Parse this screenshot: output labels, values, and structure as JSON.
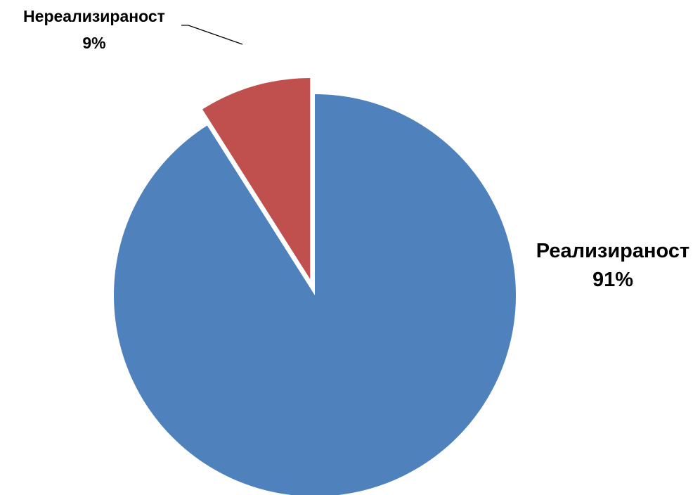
{
  "chart_data": {
    "type": "pie",
    "title": "",
    "slices": [
      {
        "name": "Реализираност",
        "value": 91,
        "value_label": "91%",
        "color": "#4F81BD",
        "exploded": false
      },
      {
        "name": "Нереализираност",
        "value": 9,
        "value_label": "9%",
        "color": "#C0504D",
        "exploded": true
      }
    ],
    "start_angle_deg": 0,
    "direction": "clockwise",
    "legend": "none",
    "data_labels": "outside"
  }
}
